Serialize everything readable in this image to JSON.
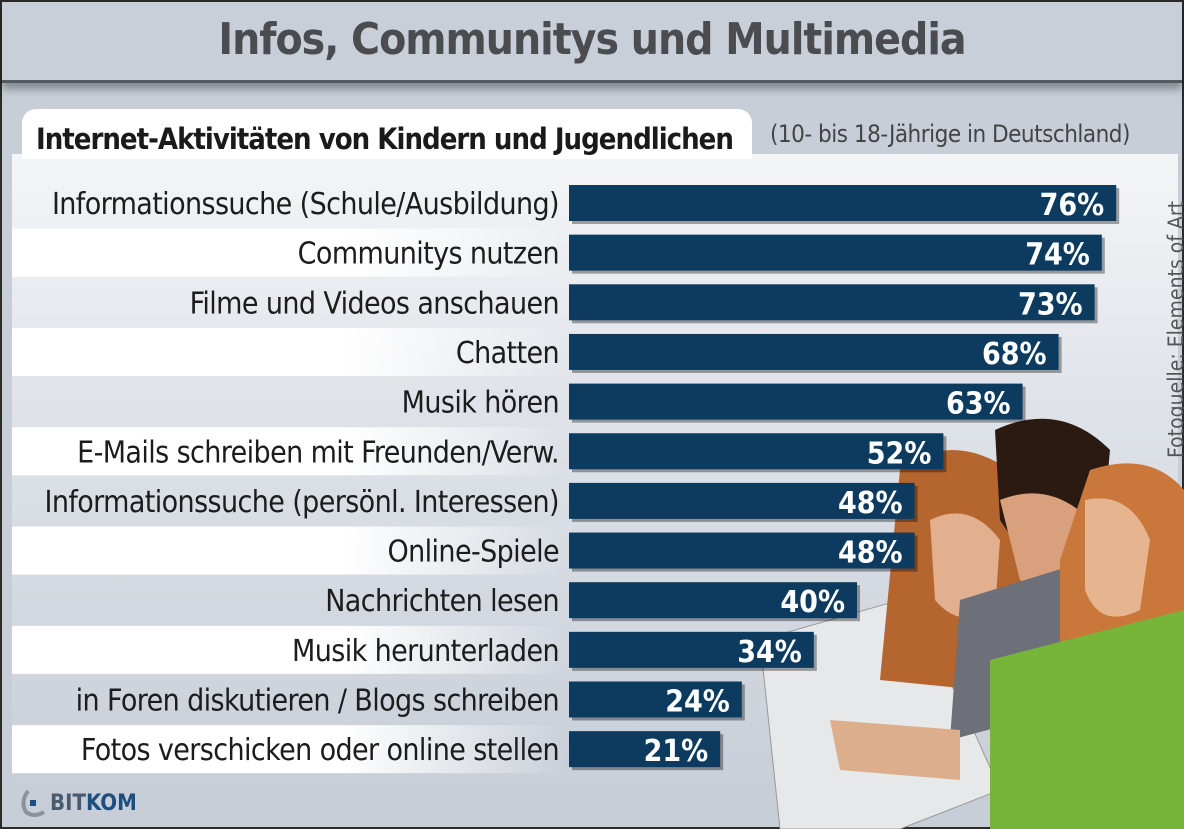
{
  "title": "Infos, Communitys und Multimedia",
  "subtitle": "Internet-Aktivitäten von Kindern und Jugendlichen",
  "note": "(10- bis 18-Jährige in Deutschland)",
  "source": "Fotoquelle: Elements of Art",
  "logo": {
    "prefix": "BIT",
    "suffix": "KOM"
  },
  "colors": {
    "bar": "#0d3b60",
    "background": "#c8ced8",
    "title": "#4a4c50"
  },
  "chart_data": {
    "type": "bar",
    "orientation": "horizontal",
    "title": "Internet-Aktivitäten von Kindern und Jugendlichen",
    "categories": [
      "Informationssuche (Schule/Ausbildung)",
      "Communitys nutzen",
      "Filme und Videos anschauen",
      "Chatten",
      "Musik hören",
      "E-Mails schreiben mit Freunden/Verw.",
      "Informationssuche (persönl. Interessen)",
      "Online-Spiele",
      "Nachrichten lesen",
      "Musik herunterladen",
      "in Foren diskutieren / Blogs schreiben",
      "Fotos verschicken oder online stellen"
    ],
    "values": [
      76,
      74,
      73,
      68,
      63,
      52,
      48,
      48,
      40,
      34,
      24,
      21
    ],
    "labels": [
      "76%",
      "74%",
      "73%",
      "68%",
      "63%",
      "52%",
      "48%",
      "48%",
      "40%",
      "34%",
      "24%",
      "21%"
    ],
    "unit": "%",
    "xlim": [
      0,
      100
    ],
    "grid": false
  }
}
